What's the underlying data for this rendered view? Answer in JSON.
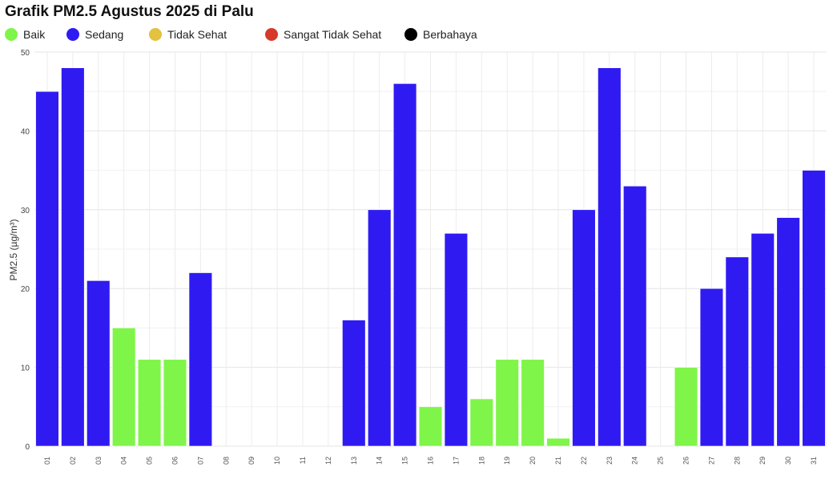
{
  "title": "Grafik PM2.5 Agustus 2025 di Palu",
  "legend": [
    {
      "label": "Baik",
      "color": "#7ff54a"
    },
    {
      "label": "Sedang",
      "color": "#2f1bf2"
    },
    {
      "label": "Tidak Sehat",
      "color": "#e2c23e"
    },
    {
      "label": "Sangat Tidak Sehat",
      "color": "#d63a2a"
    },
    {
      "label": "Berbahaya",
      "color": "#000000"
    }
  ],
  "chart_data": {
    "type": "bar",
    "title": "Grafik PM2.5 Agustus 2025 di Palu",
    "xlabel": "",
    "ylabel": "PM2.5 (µg/m³)",
    "ylim": [
      0,
      50
    ],
    "yticks": [
      0,
      10,
      20,
      30,
      40,
      50
    ],
    "grid": true,
    "legend_position": "top",
    "categories": [
      "01",
      "02",
      "03",
      "04",
      "05",
      "06",
      "07",
      "08",
      "09",
      "10",
      "11",
      "12",
      "13",
      "14",
      "15",
      "16",
      "17",
      "18",
      "19",
      "20",
      "21",
      "22",
      "23",
      "24",
      "25",
      "26",
      "27",
      "28",
      "29",
      "30",
      "31"
    ],
    "values": [
      45,
      48,
      21,
      15,
      11,
      11,
      22,
      null,
      null,
      null,
      null,
      null,
      16,
      30,
      46,
      5,
      27,
      6,
      11,
      11,
      1,
      30,
      48,
      33,
      null,
      10,
      20,
      24,
      27,
      29,
      35
    ],
    "categories_quality": [
      "Sedang",
      "Sedang",
      "Sedang",
      "Baik",
      "Baik",
      "Baik",
      "Sedang",
      null,
      null,
      null,
      null,
      null,
      "Sedang",
      "Sedang",
      "Sedang",
      "Baik",
      "Sedang",
      "Baik",
      "Baik",
      "Baik",
      "Baik",
      "Sedang",
      "Sedang",
      "Sedang",
      null,
      "Baik",
      "Sedang",
      "Sedang",
      "Sedang",
      "Sedang",
      "Sedang"
    ]
  }
}
